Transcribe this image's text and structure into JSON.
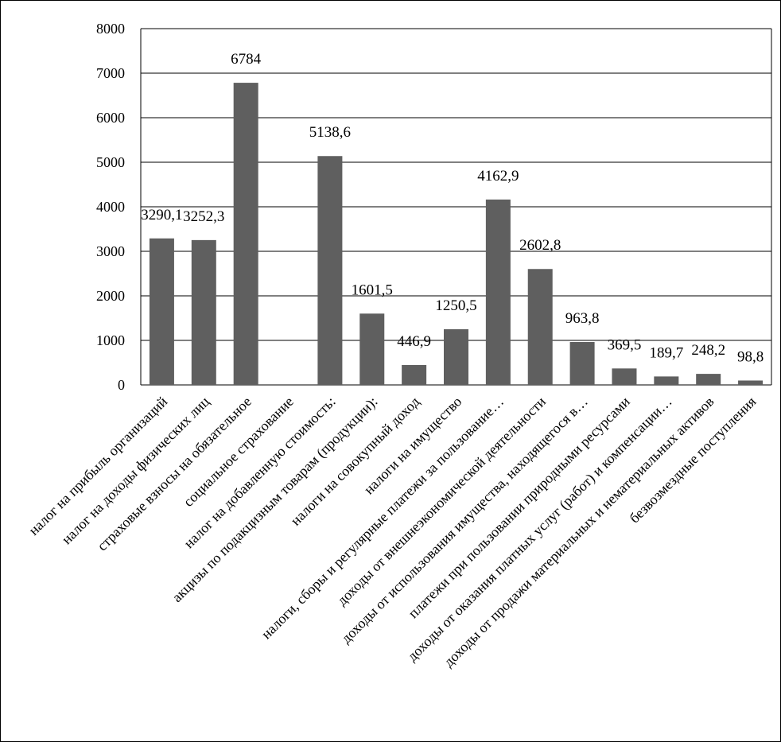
{
  "chart_data": {
    "type": "bar",
    "title": "",
    "xlabel": "",
    "ylabel": "",
    "ylim": [
      0,
      8000
    ],
    "yticks": [
      0,
      1000,
      2000,
      3000,
      4000,
      5000,
      6000,
      7000,
      8000
    ],
    "grid": true,
    "legend": "none",
    "bar_color": "#5f5f5f",
    "categories": [
      "налог на прибыль организаций",
      "налог на доходы физических лиц",
      "страховые взносы на обязательное",
      "социальное страхование",
      "налог на добавленную стоимость:",
      "акцизы по подакцизным товарам (продукции):",
      "налоги на совокупный доход",
      "налоги на имущество",
      "налоги, сборы и регулярные платежи за пользование…",
      "доходы от внешнеэкономической деятельности",
      "доходы от использования имущества, находящегося в…",
      "платежи при пользовании природными ресурсами",
      "доходы от оказания платных услуг (работ) и компенсации…",
      "доходы от продажи материальных и нематериальных активов",
      "безвозмездные поступления"
    ],
    "values": [
      3290.1,
      3252.3,
      6784,
      null,
      5138.6,
      1601.5,
      446.9,
      1250.5,
      4162.9,
      2602.8,
      963.8,
      369.5,
      189.7,
      248.2,
      98.8
    ],
    "data_labels": [
      "3290,1",
      "3252,3",
      "6784",
      "",
      "5138,6",
      "1601,5",
      "446,9",
      "1250,5",
      "4162,9",
      "2602,8",
      "963,8",
      "369,5",
      "189,7",
      "248,2",
      "98,8"
    ]
  }
}
